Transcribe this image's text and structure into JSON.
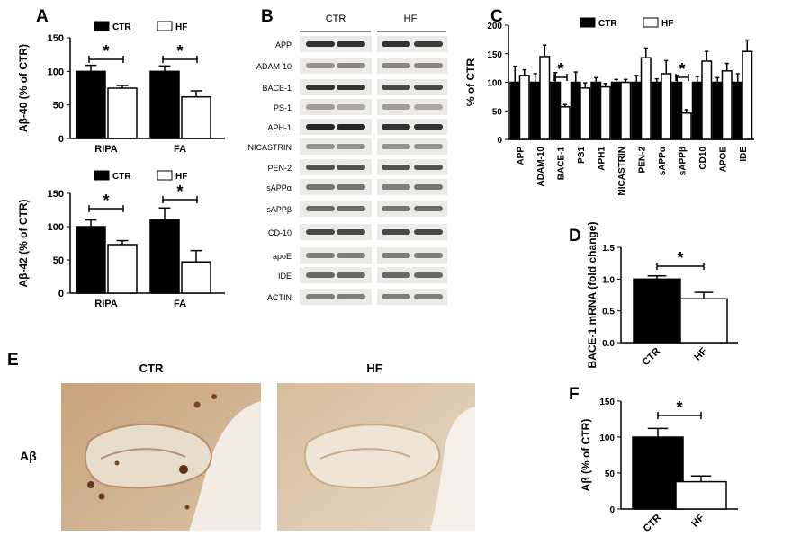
{
  "panels": {
    "A": "A",
    "B": "B",
    "C": "C",
    "D": "D",
    "E": "E",
    "F": "F"
  },
  "legend": {
    "ctr": "CTR",
    "hf": "HF"
  },
  "star": "*",
  "chart_data": [
    {
      "id": "A1",
      "type": "bar",
      "categories": [
        "RIPA",
        "FA"
      ],
      "series": [
        {
          "name": "CTR",
          "values": [
            100,
            100
          ],
          "sem": [
            9,
            8
          ],
          "fill": "#000000"
        },
        {
          "name": "HF",
          "values": [
            75,
            62
          ],
          "sem": [
            4,
            9
          ],
          "fill": "#ffffff"
        }
      ],
      "ylabel": "Aβ-40 (% of CTR)",
      "ylim": [
        0,
        150
      ],
      "yticks": [
        0,
        50,
        100,
        150
      ],
      "significance": [
        {
          "category": "RIPA",
          "label": "*"
        },
        {
          "category": "FA",
          "label": "*"
        }
      ]
    },
    {
      "id": "A2",
      "type": "bar",
      "categories": [
        "RIPA",
        "FA"
      ],
      "series": [
        {
          "name": "CTR",
          "values": [
            100,
            110
          ],
          "sem": [
            10,
            18
          ],
          "fill": "#000000"
        },
        {
          "name": "HF",
          "values": [
            73,
            47
          ],
          "sem": [
            6,
            17
          ],
          "fill": "#ffffff"
        }
      ],
      "ylabel": "Aβ-42 (% of CTR)",
      "ylim": [
        0,
        150
      ],
      "yticks": [
        0,
        50,
        100,
        150
      ],
      "significance": [
        {
          "category": "RIPA",
          "label": "*"
        },
        {
          "category": "FA",
          "label": "*"
        }
      ]
    },
    {
      "id": "C",
      "type": "bar",
      "categories": [
        "APP",
        "ADAM-10",
        "BACE-1",
        "PS1",
        "APH1",
        "NICASTRIN",
        "PEN-2",
        "sAPPα",
        "sAPPβ",
        "CD10",
        "APOE",
        "IDE"
      ],
      "series": [
        {
          "name": "CTR",
          "values": [
            100,
            100,
            100,
            100,
            100,
            100,
            100,
            100,
            100,
            100,
            100,
            100
          ],
          "sem": [
            28,
            15,
            17,
            18,
            8,
            5,
            12,
            6,
            12,
            10,
            8,
            15
          ],
          "fill": "#000000"
        },
        {
          "name": "HF",
          "values": [
            112,
            145,
            57,
            90,
            92,
            100,
            143,
            115,
            46,
            137,
            120,
            154
          ],
          "sem": [
            10,
            20,
            4,
            9,
            6,
            5,
            17,
            23,
            6,
            17,
            13,
            20
          ],
          "fill": "#ffffff"
        }
      ],
      "ylabel": "% of CTR",
      "ylim": [
        0,
        200
      ],
      "yticks": [
        0,
        50,
        100,
        150,
        200
      ],
      "significance": [
        {
          "category": "BACE-1",
          "label": "*"
        },
        {
          "category": "sAPPβ",
          "label": "*"
        }
      ]
    },
    {
      "id": "D",
      "type": "bar",
      "categories": [
        "CTR",
        "HF"
      ],
      "values": [
        1.0,
        0.69
      ],
      "sem": [
        0.05,
        0.1
      ],
      "fills": [
        "#000000",
        "#ffffff"
      ],
      "ylabel": "BACE-1 mRNA (fold change)",
      "ylim": [
        0,
        1.5
      ],
      "yticks": [
        "0.0",
        "0.5",
        "1.0",
        "1.5"
      ],
      "significance": [
        {
          "label": "*"
        }
      ]
    },
    {
      "id": "F",
      "type": "bar",
      "categories": [
        "CTR",
        "HF"
      ],
      "values": [
        100,
        38
      ],
      "sem": [
        12,
        8
      ],
      "fills": [
        "#000000",
        "#ffffff"
      ],
      "ylabel": "Aβ (% of CTR)",
      "ylim": [
        0,
        150
      ],
      "yticks": [
        0,
        50,
        100,
        150
      ],
      "significance": [
        {
          "label": "*"
        }
      ]
    }
  ],
  "blot": {
    "groups": [
      "CTR",
      "HF"
    ],
    "proteins": [
      "APP",
      "ADAM-10",
      "BACE-1",
      "PS-1",
      "APH-1",
      "NICASTRIN",
      "PEN-2",
      "sAPPα",
      "sAPPβ",
      "CD-10",
      "apoE",
      "IDE",
      "ACTIN"
    ]
  },
  "histology": {
    "row_label": "Aβ",
    "titles": [
      "CTR",
      "HF"
    ]
  }
}
